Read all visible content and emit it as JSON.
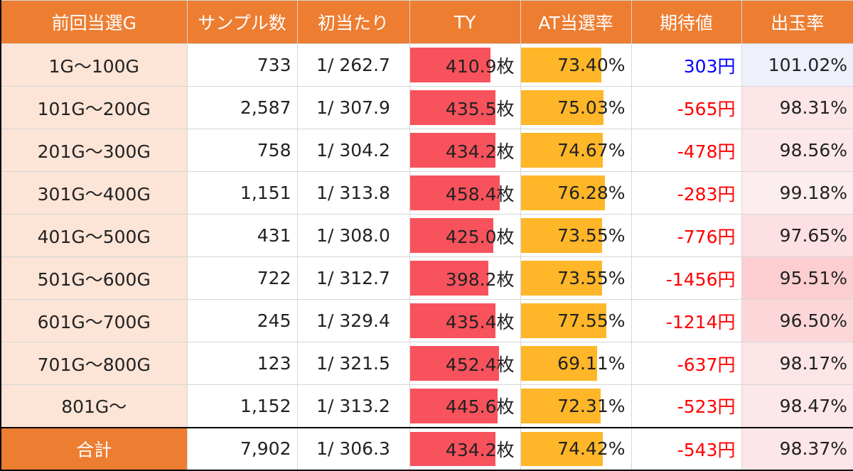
{
  "table": {
    "headers": [
      "前回当選G",
      "サンプル数",
      "初当たり",
      "TY",
      "AT当選率",
      "期待値",
      "出玉率"
    ],
    "rows": [
      {
        "range": "1G～100G",
        "samples": "733",
        "first_hit": "1/ 262.7",
        "ty": "410.9枚",
        "ty_value": 410.9,
        "at_rate": "73.40%",
        "at_value": 73.4,
        "ev": "303円",
        "ev_sign": "pos",
        "payout": "101.02%",
        "payout_value": 101.02
      },
      {
        "range": "101G～200G",
        "samples": "2,587",
        "first_hit": "1/ 307.9",
        "ty": "435.5枚",
        "ty_value": 435.5,
        "at_rate": "75.03%",
        "at_value": 75.03,
        "ev": "-565円",
        "ev_sign": "neg",
        "payout": "98.31%",
        "payout_value": 98.31
      },
      {
        "range": "201G～300G",
        "samples": "758",
        "first_hit": "1/ 304.2",
        "ty": "434.2枚",
        "ty_value": 434.2,
        "at_rate": "74.67%",
        "at_value": 74.67,
        "ev": "-478円",
        "ev_sign": "neg",
        "payout": "98.56%",
        "payout_value": 98.56
      },
      {
        "range": "301G～400G",
        "samples": "1,151",
        "first_hit": "1/ 313.8",
        "ty": "458.4枚",
        "ty_value": 458.4,
        "at_rate": "76.28%",
        "at_value": 76.28,
        "ev": "-283円",
        "ev_sign": "neg",
        "payout": "99.18%",
        "payout_value": 99.18
      },
      {
        "range": "401G～500G",
        "samples": "431",
        "first_hit": "1/ 308.0",
        "ty": "425.0枚",
        "ty_value": 425.0,
        "at_rate": "73.55%",
        "at_value": 73.55,
        "ev": "-776円",
        "ev_sign": "neg",
        "payout": "97.65%",
        "payout_value": 97.65
      },
      {
        "range": "501G～600G",
        "samples": "722",
        "first_hit": "1/ 312.7",
        "ty": "398.2枚",
        "ty_value": 398.2,
        "at_rate": "73.55%",
        "at_value": 73.55,
        "ev": "-1456円",
        "ev_sign": "neg",
        "payout": "95.51%",
        "payout_value": 95.51
      },
      {
        "range": "601G～700G",
        "samples": "245",
        "first_hit": "1/ 329.4",
        "ty": "435.4枚",
        "ty_value": 435.4,
        "at_rate": "77.55%",
        "at_value": 77.55,
        "ev": "-1214円",
        "ev_sign": "neg",
        "payout": "96.50%",
        "payout_value": 96.5
      },
      {
        "range": "701G～800G",
        "samples": "123",
        "first_hit": "1/ 321.5",
        "ty": "452.4枚",
        "ty_value": 452.4,
        "at_rate": "69.11%",
        "at_value": 69.11,
        "ev": "-637円",
        "ev_sign": "neg",
        "payout": "98.17%",
        "payout_value": 98.17
      },
      {
        "range": "801G～",
        "samples": "1,152",
        "first_hit": "1/ 313.2",
        "ty": "445.6枚",
        "ty_value": 445.6,
        "at_rate": "72.31%",
        "at_value": 72.31,
        "ev": "-523円",
        "ev_sign": "neg",
        "payout": "98.47%",
        "payout_value": 98.47
      }
    ],
    "total": {
      "range": "合計",
      "samples": "7,902",
      "first_hit": "1/ 306.3",
      "ty": "434.2枚",
      "ty_value": 434.2,
      "at_rate": "74.42%",
      "at_value": 74.42,
      "ev": "-543円",
      "ev_sign": "neg",
      "payout": "98.37%",
      "payout_value": 98.37
    }
  },
  "colors": {
    "header_bg": "#ed7d31",
    "header_text": "#ffffff",
    "label_bg": "#fce4d6",
    "ty_bar": "#f8525c",
    "at_bar": "#ffb628",
    "positive": "#0000ff",
    "negative": "#ff0000"
  }
}
